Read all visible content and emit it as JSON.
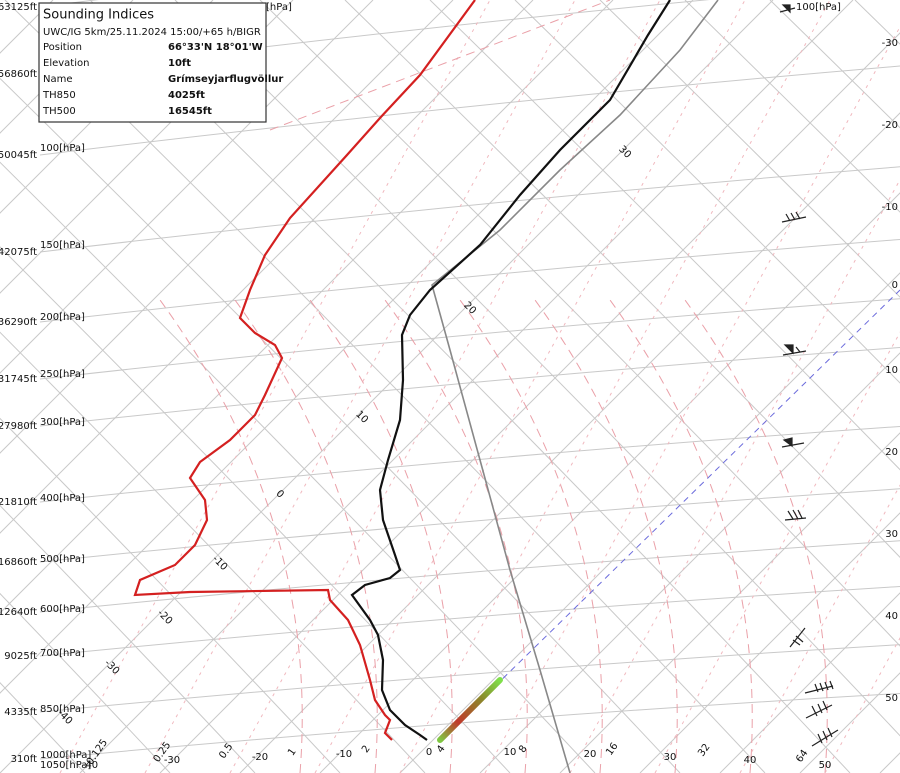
{
  "info_box": {
    "title": "Sounding Indices",
    "subtitle": "UWC/IG 5km/25.11.2024 15:00/+65 h/BIGR",
    "rows": [
      {
        "label": "Position",
        "value": "66°33'N 18°01'W"
      },
      {
        "label": "Elevation",
        "value": "10ft"
      },
      {
        "label": "Name",
        "value": "Grímseyjarflugvöllur"
      },
      {
        "label": "TH850",
        "value": "4025ft"
      },
      {
        "label": "TH500",
        "value": "16545ft"
      }
    ]
  },
  "altitude_labels": [
    "63125ft",
    "56860ft",
    "50045ft",
    "42075ft",
    "36290ft",
    "31745ft",
    "27980ft",
    "21810ft",
    "16860ft",
    "12640ft",
    "9025ft",
    "4335ft",
    "310ft"
  ],
  "pressure_labels": [
    "100[hPa]",
    "150[hPa]",
    "200[hPa]",
    "250[hPa]",
    "300[hPa]",
    "400[hPa]",
    "500[hPa]",
    "600[hPa]",
    "700[hPa]",
    "850[hPa]",
    "1000[hPa]",
    "1050[hPa]"
  ],
  "top_labels": [
    "[hPa]",
    "100[hPa]"
  ],
  "right_axis_labels": [
    "-30",
    "-20",
    "-10",
    "0",
    "10",
    "20",
    "30",
    "40",
    "50"
  ],
  "temperature_labels": [
    "-40",
    "-30",
    "-20",
    "-10",
    "0",
    "10",
    "20",
    "30",
    "40",
    "50"
  ],
  "mixing_ratio_labels": [
    "0.125",
    "0.25",
    "0.5",
    "1",
    "2",
    "4",
    "8",
    "16",
    "32",
    "64"
  ],
  "isotherm_labels": [
    "30",
    "20",
    "10",
    "0",
    "-10",
    "-20",
    "-30",
    "-40"
  ]
}
